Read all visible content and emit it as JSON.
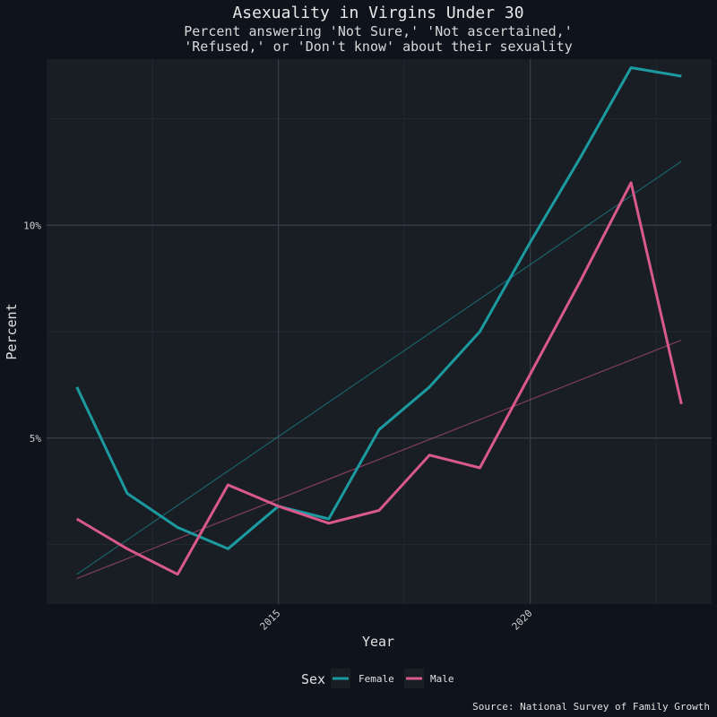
{
  "chart_data": {
    "type": "line",
    "title": "Asexuality in Virgins Under 30",
    "subtitle_lines": [
      "Percent answering 'Not Sure,' 'Not ascertained,'",
      "'Refused,' or 'Don't know' about their sexuality"
    ],
    "xlabel": "Year",
    "ylabel": "Percent",
    "caption": "Source: National Survey of Family Growth",
    "x_ticks": [
      2015,
      2020
    ],
    "x_tick_labels": [
      "2015",
      "2020"
    ],
    "y_ticks": [
      5,
      10
    ],
    "y_tick_labels": [
      "5%",
      "10%"
    ],
    "xlim": [
      2010.4,
      2023.6
    ],
    "ylim": [
      1.1,
      13.9
    ],
    "grid": true,
    "legend": {
      "title": "Sex",
      "position": "bottom",
      "entries": [
        "Female",
        "Male"
      ]
    },
    "series": [
      {
        "name": "Female",
        "color": "#1b9aa0",
        "x": [
          2011,
          2012,
          2013,
          2014,
          2015,
          2016,
          2017,
          2018,
          2019,
          2020,
          2021,
          2022,
          2023
        ],
        "values": [
          6.2,
          3.7,
          2.9,
          2.4,
          3.4,
          3.1,
          5.2,
          6.2,
          7.5,
          9.6,
          11.6,
          13.7,
          13.5
        ],
        "trend": [
          1.8,
          11.5
        ]
      },
      {
        "name": "Male",
        "color": "#d9598a",
        "x": [
          2011,
          2012,
          2013,
          2014,
          2015,
          2016,
          2017,
          2018,
          2019,
          2020,
          2021,
          2022,
          2023
        ],
        "values": [
          3.1,
          2.4,
          1.8,
          3.9,
          3.4,
          3.0,
          3.3,
          4.6,
          4.3,
          6.5,
          8.7,
          11.0,
          5.8
        ],
        "trend": [
          1.7,
          7.3
        ]
      }
    ]
  }
}
